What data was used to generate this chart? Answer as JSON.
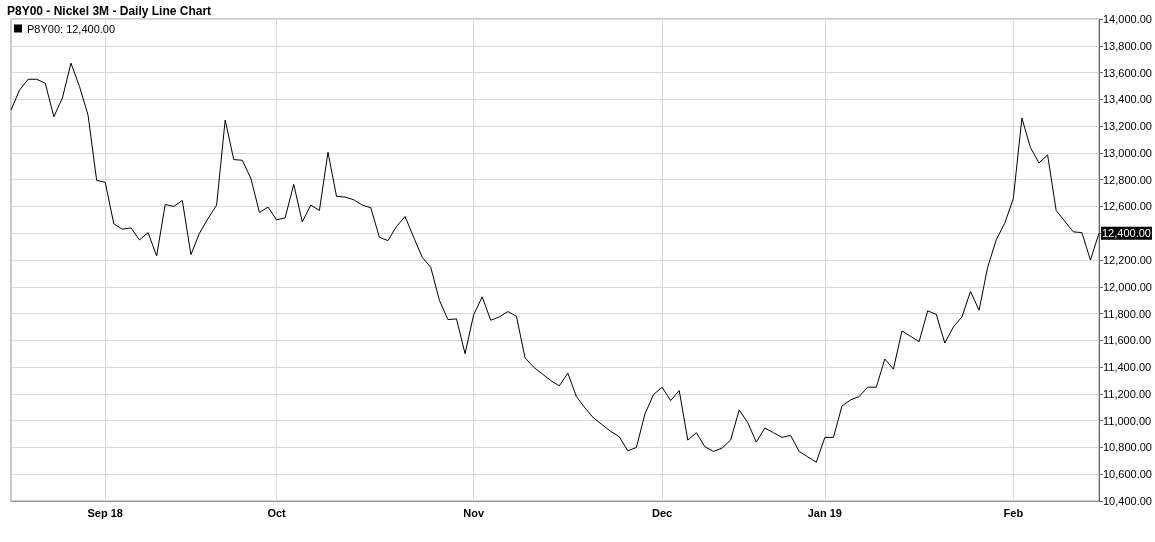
{
  "chart_data": {
    "type": "line",
    "title": "P8Y00 - Nickel 3M - Daily Line Chart",
    "categories": [
      null,
      null,
      null,
      null,
      null,
      null,
      null,
      null,
      null,
      null,
      null,
      "Sep 18",
      null,
      null,
      null,
      null,
      null,
      null,
      null,
      null,
      null,
      null,
      null,
      null,
      null,
      null,
      null,
      null,
      null,
      null,
      null,
      "Oct",
      null,
      null,
      null,
      null,
      null,
      null,
      null,
      null,
      null,
      null,
      null,
      null,
      null,
      null,
      null,
      null,
      null,
      null,
      null,
      null,
      null,
      null,
      "Nov",
      null,
      null,
      null,
      null,
      null,
      null,
      null,
      null,
      null,
      null,
      null,
      null,
      null,
      null,
      null,
      null,
      null,
      null,
      null,
      null,
      null,
      "Dec",
      null,
      null,
      null,
      null,
      null,
      null,
      null,
      null,
      null,
      null,
      null,
      null,
      null,
      null,
      null,
      null,
      null,
      null,
      "Jan 19",
      null,
      null,
      null,
      null,
      null,
      null,
      null,
      null,
      null,
      null,
      null,
      null,
      null,
      null,
      null,
      null,
      null,
      null,
      null,
      null,
      null,
      "Feb",
      null,
      null,
      null,
      null,
      null,
      null,
      null,
      null,
      null,
      null
    ],
    "series": [
      {
        "name": "P8Y00: 12,400.00",
        "color": "#000000",
        "values": [
          13320,
          13470,
          13550,
          13550,
          13520,
          13270,
          13410,
          13670,
          13495,
          13280,
          12795,
          12780,
          12470,
          12430,
          12440,
          12350,
          12405,
          12230,
          12615,
          12600,
          12645,
          12240,
          12400,
          12510,
          12610,
          13245,
          12950,
          12945,
          12810,
          12555,
          12595,
          12500,
          12515,
          12765,
          12485,
          12610,
          12570,
          13005,
          12675,
          12670,
          12650,
          12610,
          12590,
          12370,
          12345,
          12450,
          12525,
          12370,
          12220,
          12145,
          11900,
          11755,
          11760,
          11500,
          11790,
          11925,
          11750,
          11775,
          11815,
          11780,
          11470,
          11400,
          11350,
          11300,
          11260,
          11355,
          11180,
          11095,
          11020,
          10970,
          10920,
          10880,
          10775,
          10800,
          11050,
          11195,
          11250,
          11150,
          11225,
          10855,
          10910,
          10805,
          10770,
          10795,
          10855,
          11080,
          10985,
          10840,
          10945,
          10910,
          10875,
          10890,
          10770,
          10730,
          10690,
          10875,
          10875,
          11110,
          11155,
          11180,
          11250,
          11250,
          11460,
          11385,
          11670,
          11630,
          11590,
          11820,
          11795,
          11580,
          11700,
          11775,
          11965,
          11825,
          12145,
          12350,
          12475,
          12660,
          13260,
          13040,
          12925,
          12985,
          12570,
          12490,
          12410,
          12405,
          12200,
          12400
        ],
        "value_labels": [
          null,
          null,
          null,
          null,
          null,
          null,
          null,
          null,
          null,
          null,
          null,
          null,
          null,
          null,
          null,
          null,
          null,
          null,
          null,
          null,
          null,
          null,
          null,
          null,
          null,
          null,
          null,
          null,
          null,
          null,
          null,
          null,
          null,
          null,
          null,
          null,
          null,
          null,
          null,
          null,
          null,
          null,
          null,
          null,
          null,
          null,
          null,
          null,
          null,
          null,
          null,
          null,
          null,
          null,
          null,
          null,
          null,
          null,
          null,
          null,
          null,
          null,
          null,
          null,
          null,
          null,
          null,
          null,
          null,
          null,
          null,
          null,
          null,
          null,
          null,
          null,
          null,
          null,
          null,
          null,
          null,
          null,
          null,
          null,
          null,
          null,
          null,
          null,
          null,
          null,
          null,
          null,
          null,
          null,
          null,
          null,
          null,
          null,
          null,
          null,
          null,
          null,
          null,
          null,
          null,
          null,
          null,
          null,
          null,
          null,
          null,
          null,
          null,
          null,
          null,
          null,
          null,
          null,
          null,
          null,
          null,
          null,
          null,
          null,
          null,
          null,
          null,
          "12,400.00"
        ]
      }
    ],
    "ylim": [
      10400,
      14000
    ],
    "yticks": [
      {
        "value": 10400,
        "label": "10,400.00"
      },
      {
        "value": 10600,
        "label": "10,600.00"
      },
      {
        "value": 10800,
        "label": "10,800.00"
      },
      {
        "value": 11000,
        "label": "11,000.00"
      },
      {
        "value": 11200,
        "label": "11,200.00"
      },
      {
        "value": 11400,
        "label": "11,400.00"
      },
      {
        "value": 11600,
        "label": "11,600.00"
      },
      {
        "value": 11800,
        "label": "11,800.00"
      },
      {
        "value": 12000,
        "label": "12,000.00"
      },
      {
        "value": 12200,
        "label": "12,200.00"
      },
      {
        "value": 12400,
        "label": null
      },
      {
        "value": 12600,
        "label": "12,600.00"
      },
      {
        "value": 12800,
        "label": "12,800.00"
      },
      {
        "value": 13000,
        "label": "13,000.00"
      },
      {
        "value": 13200,
        "label": "13,200.00"
      },
      {
        "value": 13400,
        "label": "13,400.00"
      },
      {
        "value": 13600,
        "label": "13,600.00"
      },
      {
        "value": 13800,
        "label": "13,800.00"
      },
      {
        "value": 14000,
        "label": "14,000.00"
      }
    ],
    "grid": true,
    "legend": "top left",
    "marker": "none",
    "line_style": "solid"
  }
}
